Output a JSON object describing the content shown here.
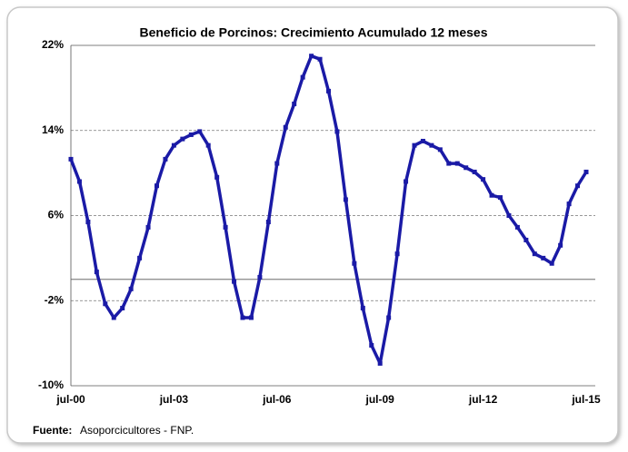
{
  "chart_data": {
    "type": "line",
    "title": "Beneficio de Porcinos: Crecimiento Acumulado 12 meses",
    "source_label": "Fuente:",
    "source": "Asoporcicultores - FNP.",
    "categories": [
      "jul-00",
      null,
      null,
      null,
      null,
      null,
      null,
      null,
      null,
      null,
      null,
      null,
      "jul-03",
      null,
      null,
      null,
      null,
      null,
      null,
      null,
      null,
      null,
      null,
      null,
      "jul-06",
      null,
      null,
      null,
      null,
      null,
      null,
      null,
      null,
      null,
      null,
      null,
      "jul-09",
      null,
      null,
      null,
      null,
      null,
      null,
      null,
      null,
      null,
      null,
      null,
      "jul-12",
      null,
      null,
      null,
      null,
      null,
      null,
      null,
      null,
      null,
      null,
      null,
      "jul-15"
    ],
    "series": [
      {
        "name": "Crecimiento Acumulado 12 meses",
        "color": "#1a1aa6",
        "values": [
          11.3,
          9.2,
          5.4,
          0.7,
          -2.3,
          -3.6,
          -2.7,
          -0.9,
          2.0,
          4.9,
          8.8,
          11.3,
          12.6,
          13.2,
          13.6,
          13.9,
          12.6,
          9.6,
          4.9,
          -0.2,
          -3.6,
          -3.6,
          0.2,
          5.4,
          10.9,
          14.3,
          16.5,
          19.0,
          21.0,
          20.7,
          17.7,
          13.9,
          7.5,
          1.5,
          -2.7,
          -6.2,
          -7.9,
          -3.6,
          2.4,
          9.2,
          12.6,
          13.0,
          12.6,
          12.2,
          10.9,
          10.9,
          10.5,
          10.1,
          9.4,
          7.9,
          7.7,
          6.0,
          4.9,
          3.7,
          2.4,
          2.0,
          1.5,
          3.2,
          7.1,
          8.8,
          10.1
        ]
      }
    ],
    "ylim": [
      -10,
      22
    ],
    "yticks": [
      {
        "value": -10,
        "label": "-10%"
      },
      {
        "value": -2,
        "label": "-2%"
      },
      {
        "value": 6,
        "label": "6%"
      },
      {
        "value": 14,
        "label": "14%"
      },
      {
        "value": 22,
        "label": "22%"
      }
    ],
    "grid": true
  }
}
